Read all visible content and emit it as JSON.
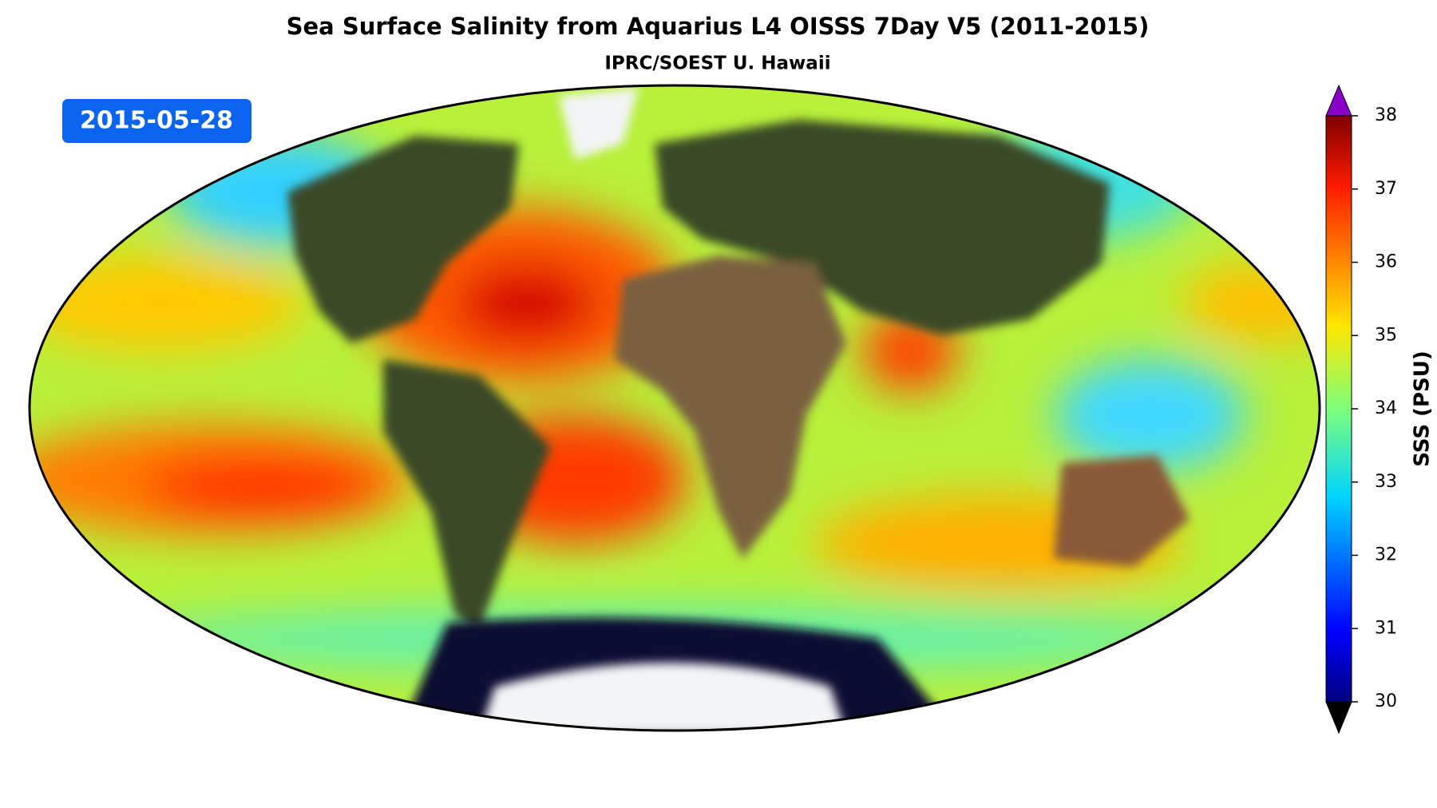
{
  "title": "Sea Surface Salinity from Aquarius L4 OISSS 7Day V5 (2011-2015)",
  "subtitle": "IPRC/SOEST U. Hawaii",
  "date": "2015-05-28",
  "colorbar": {
    "label": "SSS (PSU)",
    "lim": [
      30,
      38
    ],
    "ticks": [
      30,
      31,
      32,
      33,
      34,
      35,
      36,
      37,
      38
    ]
  }
}
